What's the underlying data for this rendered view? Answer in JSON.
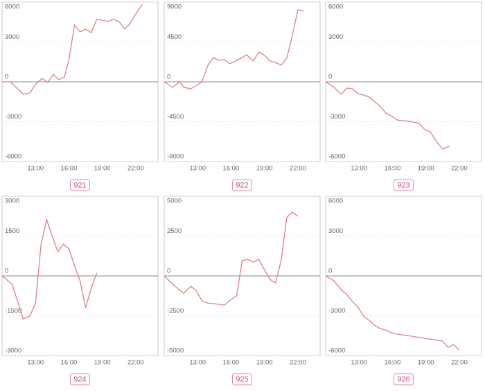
{
  "chart_data": [
    {
      "type": "line",
      "title": "921",
      "color": "#e07f7f",
      "grid": true,
      "x": [
        10,
        10.75,
        11.9,
        12.5,
        13,
        13.6,
        14.1,
        14.6,
        15.1,
        15.6,
        16,
        16.5,
        17,
        17.5,
        18,
        18.5,
        19,
        19.5,
        20,
        20.5,
        21,
        21.5,
        22,
        22.6
      ],
      "values": [
        0,
        0,
        -940,
        -830,
        -210,
        260,
        -50,
        570,
        160,
        370,
        1620,
        4280,
        3760,
        3970,
        3700,
        4700,
        4640,
        4540,
        4700,
        4540,
        3970,
        4380,
        5110,
        5840
      ],
      "xlim": [
        10,
        24
      ],
      "xticks": [
        {
          "value": 13,
          "label": "13:00"
        },
        {
          "value": 16,
          "label": "16:00"
        },
        {
          "value": 19,
          "label": "19:00"
        },
        {
          "value": 22,
          "label": "22:00"
        }
      ],
      "ylim": [
        -6000,
        6000
      ],
      "yticks": [
        6000,
        3000,
        0,
        -3000,
        -6000
      ]
    },
    {
      "type": "line",
      "title": "922",
      "color": "#e07f7f",
      "grid": true,
      "x": [
        10,
        10.75,
        11.4,
        11.75,
        12.4,
        13.4,
        13.9,
        14.4,
        14.9,
        15.4,
        15.9,
        16.4,
        16.9,
        17.4,
        18,
        18.5,
        19,
        19.5,
        20,
        20.5,
        21,
        21.5,
        22,
        22.5
      ],
      "values": [
        0,
        -630,
        0,
        -630,
        -780,
        0,
        1800,
        2740,
        2430,
        2510,
        2040,
        2350,
        2660,
        3050,
        2350,
        3370,
        2980,
        2350,
        2190,
        1880,
        2660,
        5170,
        8140,
        7990
      ],
      "xlim": [
        10,
        24
      ],
      "xticks": [
        {
          "value": 13,
          "label": "13:00"
        },
        {
          "value": 16,
          "label": "16:00"
        },
        {
          "value": 19,
          "label": "19:00"
        },
        {
          "value": 22,
          "label": "22:00"
        }
      ],
      "ylim": [
        -9000,
        9000
      ],
      "yticks": [
        9000,
        4500,
        0,
        -4500,
        -9000
      ]
    },
    {
      "type": "line",
      "title": "923",
      "color": "#e07f7f",
      "grid": true,
      "x": [
        10,
        10.75,
        11.4,
        11.9,
        12.4,
        12.9,
        13.4,
        13.9,
        14.4,
        14.9,
        15.4,
        15.9,
        16.4,
        16.9,
        17.4,
        17.9,
        18.4,
        18.9,
        19.4,
        19.9,
        20.5,
        21.1
      ],
      "values": [
        0,
        -420,
        -940,
        -470,
        -520,
        -890,
        -990,
        -1150,
        -1510,
        -1830,
        -2350,
        -2560,
        -2870,
        -2920,
        -2970,
        -3030,
        -3130,
        -3600,
        -3760,
        -4430,
        -5060,
        -4850
      ],
      "xlim": [
        10,
        24
      ],
      "xticks": [
        {
          "value": 13,
          "label": "13:00"
        },
        {
          "value": 16,
          "label": "16:00"
        },
        {
          "value": 19,
          "label": "19:00"
        },
        {
          "value": 22,
          "label": "22:00"
        }
      ],
      "ylim": [
        -6000,
        6000
      ],
      "yticks": [
        6000,
        3000,
        0,
        -3000,
        -6000
      ]
    },
    {
      "type": "line",
      "title": "924",
      "color": "#e07f7f",
      "grid": true,
      "x": [
        10,
        10.9,
        11.9,
        12.5,
        13,
        13.5,
        14,
        14.5,
        15,
        15.5,
        16,
        16.5,
        17,
        17.5,
        18,
        18.5
      ],
      "values": [
        0,
        -310,
        -1620,
        -1510,
        -1020,
        1200,
        2110,
        1510,
        910,
        1200,
        1020,
        390,
        -180,
        -1200,
        -470,
        100
      ],
      "xlim": [
        10,
        24
      ],
      "xticks": [
        {
          "value": 13,
          "label": "13:00"
        },
        {
          "value": 16,
          "label": "16:00"
        },
        {
          "value": 19,
          "label": "19:00"
        },
        {
          "value": 22,
          "label": "22:00"
        }
      ],
      "ylim": [
        -3000,
        3000
      ],
      "yticks": [
        3000,
        1500,
        0,
        -1500,
        -3000
      ]
    },
    {
      "type": "line",
      "title": "925",
      "color": "#e07f7f",
      "grid": true,
      "x": [
        10,
        10.9,
        11.75,
        12.4,
        12.9,
        13.4,
        13.9,
        14.4,
        14.9,
        15.4,
        15.9,
        16.5,
        17,
        17.5,
        18,
        18.5,
        19,
        19.5,
        20,
        20.5,
        21,
        21.5,
        22
      ],
      "values": [
        0,
        -610,
        -1090,
        -650,
        -960,
        -1570,
        -1700,
        -1740,
        -1780,
        -1830,
        -1520,
        -1260,
        960,
        1040,
        870,
        1040,
        390,
        -220,
        -430,
        960,
        3650,
        4000,
        3740
      ],
      "xlim": [
        10,
        24
      ],
      "xticks": [
        {
          "value": 13,
          "label": "13:00"
        },
        {
          "value": 16,
          "label": "16:00"
        },
        {
          "value": 19,
          "label": "19:00"
        },
        {
          "value": 22,
          "label": "22:00"
        }
      ],
      "ylim": [
        -5000,
        5000
      ],
      "yticks": [
        5000,
        2500,
        0,
        -2500,
        -5000
      ]
    },
    {
      "type": "line",
      "title": "926",
      "color": "#e07f7f",
      "grid": true,
      "x": [
        10,
        10.75,
        11.4,
        11.9,
        12.4,
        12.9,
        13.4,
        13.9,
        14.4,
        14.9,
        15.4,
        15.9,
        16.4,
        16.9,
        17.9,
        18.9,
        19.9,
        20.5,
        21,
        21.5,
        22
      ],
      "values": [
        0,
        -370,
        -1040,
        -1410,
        -1930,
        -2350,
        -3030,
        -3340,
        -3710,
        -3970,
        -4070,
        -4280,
        -4380,
        -4440,
        -4560,
        -4700,
        -4820,
        -4910,
        -5380,
        -5170,
        -5590
      ],
      "xlim": [
        10,
        24
      ],
      "xticks": [
        {
          "value": 13,
          "label": "13:00"
        },
        {
          "value": 16,
          "label": "16:00"
        },
        {
          "value": 19,
          "label": "19:00"
        },
        {
          "value": 22,
          "label": "22:00"
        }
      ],
      "ylim": [
        -6000,
        6000
      ],
      "yticks": [
        6000,
        3000,
        0,
        -3000,
        -6000
      ]
    }
  ]
}
